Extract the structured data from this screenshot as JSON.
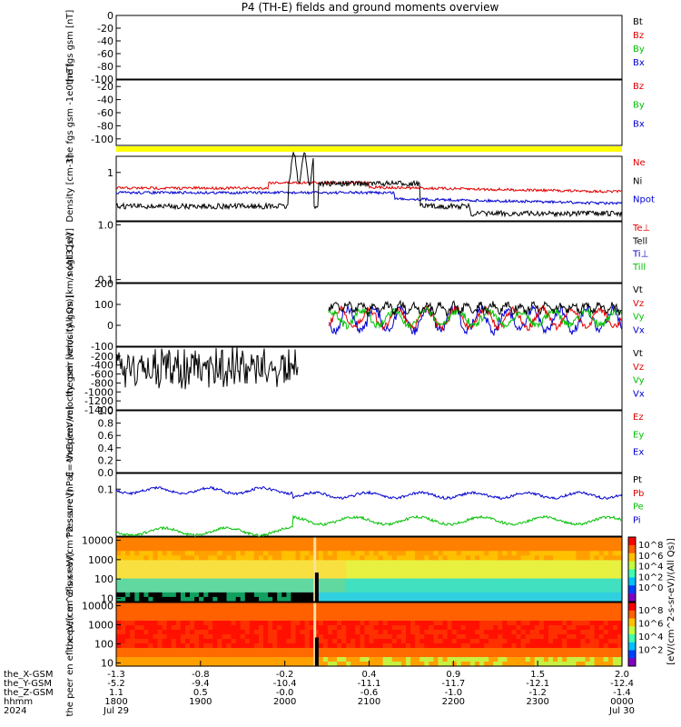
{
  "title": "P4 (TH-E) fields and ground moments overview",
  "colors": {
    "black": "#000000",
    "red": "#e00000",
    "green": "#00c000",
    "blue": "#0000d0",
    "yellow": "#ffff00",
    "darkred": "#b00000"
  },
  "chart_data": [
    {
      "type": "line",
      "name": "fgs-gsm-top",
      "ylabel": "the fgs gsm [nT]",
      "ticks": [
        "0",
        "-20",
        "-40",
        "-60",
        "-80",
        "-100"
      ],
      "ylim": [
        -100,
        0
      ],
      "legend": [
        {
          "label": "Bt",
          "color": "#000000"
        },
        {
          "label": "Bz",
          "color": "#e00000"
        },
        {
          "label": "By",
          "color": "#00c000"
        },
        {
          "label": "Bx",
          "color": "#0000d0"
        }
      ]
    },
    {
      "type": "line",
      "name": "fgs-gsm-bottom",
      "ylabel": "the fgs gsm -1e0 [nT]",
      "ticks": [
        "-20",
        "-40",
        "-60",
        "-80",
        "-100"
      ],
      "ylim": [
        -110,
        -10
      ],
      "legend": [
        {
          "label": "Bz",
          "color": "#e00000"
        },
        {
          "label": "By",
          "color": "#00c000"
        },
        {
          "label": "Bx",
          "color": "#0000d0"
        }
      ]
    },
    {
      "type": "line",
      "name": "density",
      "ylabel": "Density [cm-3]",
      "ticks": [
        "1"
      ],
      "scale": "log",
      "legend": [
        {
          "label": "Ne",
          "color": "#e00000"
        },
        {
          "label": "Ni",
          "color": "#000000"
        },
        {
          "label": "Npot",
          "color": "#0000d0"
        }
      ]
    },
    {
      "type": "line",
      "name": "temperature",
      "ylabel": "nogt3 [eV]",
      "ticks": [
        "1.0",
        "0.1"
      ],
      "scale": "log",
      "legend": [
        {
          "label": "Te⊥",
          "color": "#e00000"
        },
        {
          "label": "Tell",
          "color": "#000000"
        },
        {
          "label": "Ti⊥",
          "color": "#0000d0"
        },
        {
          "label": "Till",
          "color": "#00c000"
        }
      ]
    },
    {
      "type": "line",
      "name": "peir-velocity",
      "ylabel": "the peir velocity gsm [km/s (All Qs)]",
      "ticks": [
        "200",
        "100",
        "0",
        "-100"
      ],
      "ylim": [
        -100,
        200
      ],
      "legend": [
        {
          "label": "Vt",
          "color": "#000000"
        },
        {
          "label": "Vz",
          "color": "#e00000"
        },
        {
          "label": "Vy",
          "color": "#00c000"
        },
        {
          "label": "Vx",
          "color": "#0000d0"
        }
      ]
    },
    {
      "type": "line",
      "name": "peer-velocity",
      "ylabel": "the peer velocity gsm [km/s (All Qs)]",
      "ticks": [
        "-200",
        "-400",
        "-600",
        "-800",
        "-1000",
        "-1200",
        "-1400"
      ],
      "ylim": [
        -1400,
        0
      ],
      "legend": [
        {
          "label": "Vt",
          "color": "#000000"
        },
        {
          "label": "Vz",
          "color": "#e00000"
        },
        {
          "label": "Vy",
          "color": "#00c000"
        },
        {
          "label": "Vx",
          "color": "#0000d0"
        }
      ]
    },
    {
      "type": "line",
      "name": "efield",
      "ylabel": "E=-VxB [mV/m]",
      "ticks": [
        "1.0",
        "0.8",
        "0.6",
        "0.4",
        "0.2",
        "0.0"
      ],
      "ylim": [
        0,
        1
      ],
      "legend": [
        {
          "label": "Ez",
          "color": "#e00000"
        },
        {
          "label": "Ey",
          "color": "#00c000"
        },
        {
          "label": "Ex",
          "color": "#0000d0"
        }
      ]
    },
    {
      "type": "line",
      "name": "pressure",
      "ylabel": "Pressure [nPa]",
      "ticks": [
        "0.1"
      ],
      "scale": "log",
      "legend": [
        {
          "label": "Pt",
          "color": "#000000"
        },
        {
          "label": "Pb",
          "color": "#e00000"
        },
        {
          "label": "Pe",
          "color": "#00c000"
        },
        {
          "label": "Pi",
          "color": "#0000d0"
        }
      ]
    },
    {
      "type": "heatmap",
      "name": "peir-spectrogram",
      "ylabel": "the peir en eflux eV/(cm^2-s-sr-eV)",
      "ticks": [
        "10000",
        "1000",
        "100",
        "10"
      ],
      "scale": "log"
    },
    {
      "type": "heatmap",
      "name": "peer-spectrogram",
      "ylabel": "the peer en eflux eV/(cm^2-s-sr-eV)",
      "ticks": [
        "10000",
        "1000",
        "100",
        "10"
      ],
      "scale": "log"
    }
  ],
  "colorbar": {
    "label": "[eV/(cm^2-s-sr-eV)/(All Qs)]",
    "ticks_top": [
      "10^8",
      "10^6",
      "10^4",
      "10^2",
      "10^0"
    ],
    "ticks_bottom": [
      "10^8",
      "10^6",
      "10^4",
      "10^2"
    ]
  },
  "xaxis": {
    "row_labels": [
      "the_X-GSM",
      "the_Y-GSM",
      "the_Z-GSM",
      "hhmm",
      "2024"
    ],
    "columns": [
      {
        "vals": [
          "-1.3",
          "-5.2",
          "1.1",
          "1800",
          "Jul 29"
        ]
      },
      {
        "vals": [
          "-0.8",
          "-9.4",
          "0.5",
          "1900",
          ""
        ]
      },
      {
        "vals": [
          "-0.2",
          "-10.4",
          "-0.0",
          "2000",
          ""
        ]
      },
      {
        "vals": [
          "0.4",
          "-11.1",
          "-0.6",
          "2100",
          ""
        ]
      },
      {
        "vals": [
          "0.9",
          "-11.7",
          "-1.0",
          "2200",
          ""
        ]
      },
      {
        "vals": [
          "1.5",
          "-12.1",
          "-1.2",
          "2300",
          ""
        ]
      },
      {
        "vals": [
          "2.0",
          "-12.4",
          "-1.4",
          "0000",
          "Jul 30"
        ]
      }
    ]
  }
}
